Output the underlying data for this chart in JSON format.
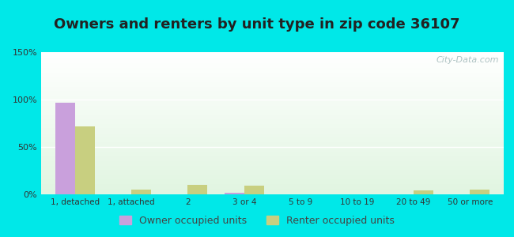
{
  "title": "Owners and renters by unit type in zip code 36107",
  "categories": [
    "1, detached",
    "1, attached",
    "2",
    "3 or 4",
    "5 to 9",
    "10 to 19",
    "20 to 49",
    "50 or more"
  ],
  "owner_values": [
    97,
    0,
    0,
    2,
    0,
    0,
    0,
    0
  ],
  "renter_values": [
    72,
    5,
    10,
    9,
    0,
    0,
    4,
    5
  ],
  "owner_color": "#c9a0dc",
  "renter_color": "#c8cf80",
  "background_outer": "#00e8e8",
  "ylim": [
    0,
    150
  ],
  "yticks": [
    0,
    50,
    100,
    150
  ],
  "ytick_labels": [
    "0%",
    "50%",
    "100%",
    "150%"
  ],
  "title_fontsize": 13,
  "legend_labels": [
    "Owner occupied units",
    "Renter occupied units"
  ],
  "bar_width": 0.35,
  "watermark": "City-Data.com"
}
